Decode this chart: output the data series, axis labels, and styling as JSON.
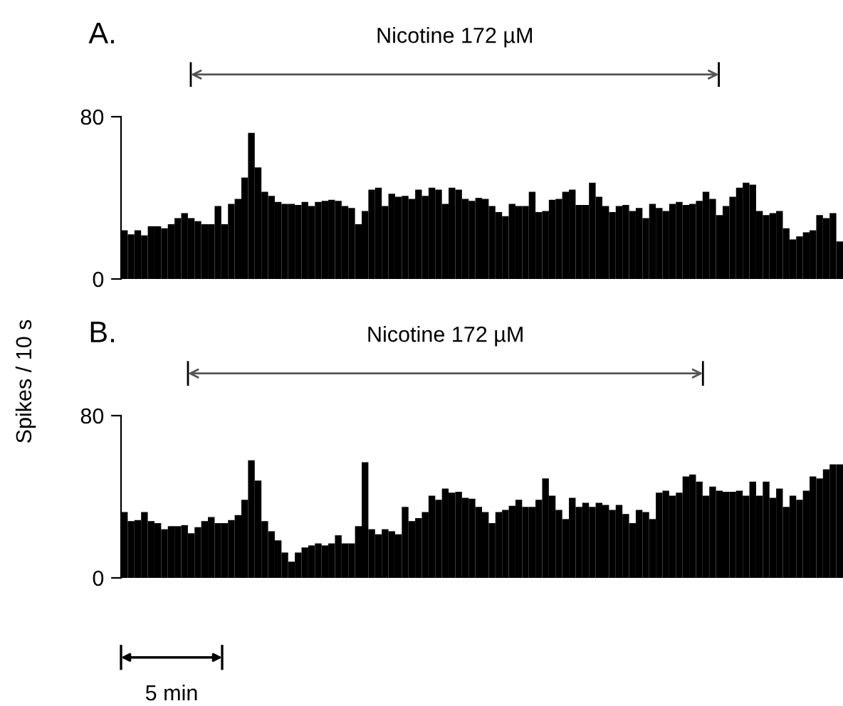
{
  "chart_data": [
    {
      "type": "bar",
      "title": "A.",
      "ylabel": "Spikes / 10 s",
      "color": "#000000",
      "ylim": [
        0,
        80
      ],
      "yticks": [
        0,
        80
      ],
      "tick_labels": "y",
      "categories": [
        null,
        null,
        null,
        null,
        null,
        null,
        null,
        null,
        null,
        null,
        null,
        null,
        null,
        null,
        null,
        null,
        null,
        null,
        null,
        null,
        null,
        null,
        null,
        null,
        null,
        null,
        null,
        null,
        null,
        null,
        null,
        null,
        null,
        null,
        null,
        null,
        null,
        null,
        null,
        null,
        null,
        null,
        null,
        null,
        null,
        null,
        null,
        null,
        null,
        null,
        null,
        null,
        null,
        null,
        null,
        null,
        null,
        null,
        null,
        null,
        null,
        null,
        null,
        null,
        null,
        null,
        null,
        null,
        null,
        null,
        null,
        null,
        null,
        null,
        null,
        null,
        null,
        null,
        null,
        null,
        null,
        null,
        null,
        null,
        null,
        null,
        null,
        null,
        null,
        null,
        null,
        null,
        null,
        null,
        null,
        null,
        null,
        null,
        null,
        null,
        null,
        null,
        null,
        null,
        null,
        null,
        null,
        null
      ],
      "values": [
        24,
        22,
        24,
        21.5,
        26,
        26,
        25,
        27,
        30,
        32.5,
        30,
        28.5,
        27,
        27,
        36,
        27,
        37,
        39.5,
        50,
        72,
        55,
        43,
        41,
        38,
        37,
        37,
        36.5,
        38,
        36,
        38,
        38.5,
        39,
        38.5,
        36,
        35,
        27,
        33.5,
        44,
        45,
        36,
        42,
        40.5,
        41,
        39.5,
        44,
        41,
        45,
        44,
        37,
        45,
        44,
        39.5,
        38.5,
        40,
        39.5,
        36,
        33,
        31,
        37,
        36,
        36,
        43,
        33,
        33.5,
        39,
        39.5,
        43,
        44,
        36.5,
        36.5,
        47.5,
        40.5,
        36,
        33,
        36,
        36.5,
        33.5,
        35,
        30,
        37,
        35,
        33.5,
        37,
        38,
        36.5,
        37,
        38.5,
        43,
        39.5,
        31.5,
        36,
        40.5,
        45,
        47.5,
        46.5,
        33.5,
        31.5,
        32.5,
        33.5,
        25,
        19.5,
        21,
        23,
        24,
        31.5,
        30,
        32.5,
        18.5
      ],
      "annotations": [
        "Nicotine 172 µM"
      ]
    },
    {
      "type": "bar",
      "title": "B.",
      "color": "#000000",
      "ylim": [
        0,
        80
      ],
      "yticks": [
        0,
        80
      ],
      "tick_labels": "y",
      "categories": [
        null,
        null,
        null,
        null,
        null,
        null,
        null,
        null,
        null,
        null,
        null,
        null,
        null,
        null,
        null,
        null,
        null,
        null,
        null,
        null,
        null,
        null,
        null,
        null,
        null,
        null,
        null,
        null,
        null,
        null,
        null,
        null,
        null,
        null,
        null,
        null,
        null,
        null,
        null,
        null,
        null,
        null,
        null,
        null,
        null,
        null,
        null,
        null,
        null,
        null,
        null,
        null,
        null,
        null,
        null,
        null,
        null,
        null,
        null,
        null,
        null,
        null,
        null,
        null,
        null,
        null,
        null,
        null,
        null,
        null,
        null,
        null,
        null,
        null,
        null,
        null,
        null,
        null,
        null,
        null,
        null,
        null,
        null,
        null,
        null,
        null,
        null,
        null,
        null,
        null,
        null,
        null,
        null,
        null,
        null,
        null,
        null,
        null,
        null,
        null,
        null,
        null,
        null,
        null,
        null,
        null,
        null,
        null
      ],
      "values": [
        32.5,
        28,
        28.5,
        32.5,
        28,
        27,
        24,
        25.5,
        25.5,
        26,
        22,
        25,
        28,
        30,
        27,
        27,
        28.5,
        31,
        38.5,
        58,
        48,
        28,
        23,
        18.5,
        12.5,
        8,
        12.5,
        15,
        16,
        17,
        16,
        17,
        21,
        17,
        17,
        25.5,
        57,
        24,
        21.5,
        24,
        23,
        21.5,
        35,
        28,
        29.5,
        32.5,
        40.5,
        38.5,
        44,
        42,
        42.5,
        39.5,
        39,
        35,
        32.5,
        27,
        32.5,
        33.5,
        35.5,
        38.5,
        35,
        35,
        38.5,
        49,
        40.5,
        33.5,
        29,
        39.5,
        35,
        37,
        35,
        37,
        36,
        33.5,
        36,
        31.5,
        27,
        33.5,
        32.5,
        29,
        42,
        43,
        40.5,
        42,
        50,
        51,
        47.5,
        40.5,
        45,
        43,
        42.5,
        42.5,
        43,
        40.5,
        47.5,
        40.5,
        47.5,
        39.5,
        44,
        35,
        40.5,
        38.5,
        43,
        50,
        49,
        53.5,
        56,
        56
      ],
      "annotations": [
        "Nicotine 172 µM",
        "5 min"
      ]
    }
  ]
}
